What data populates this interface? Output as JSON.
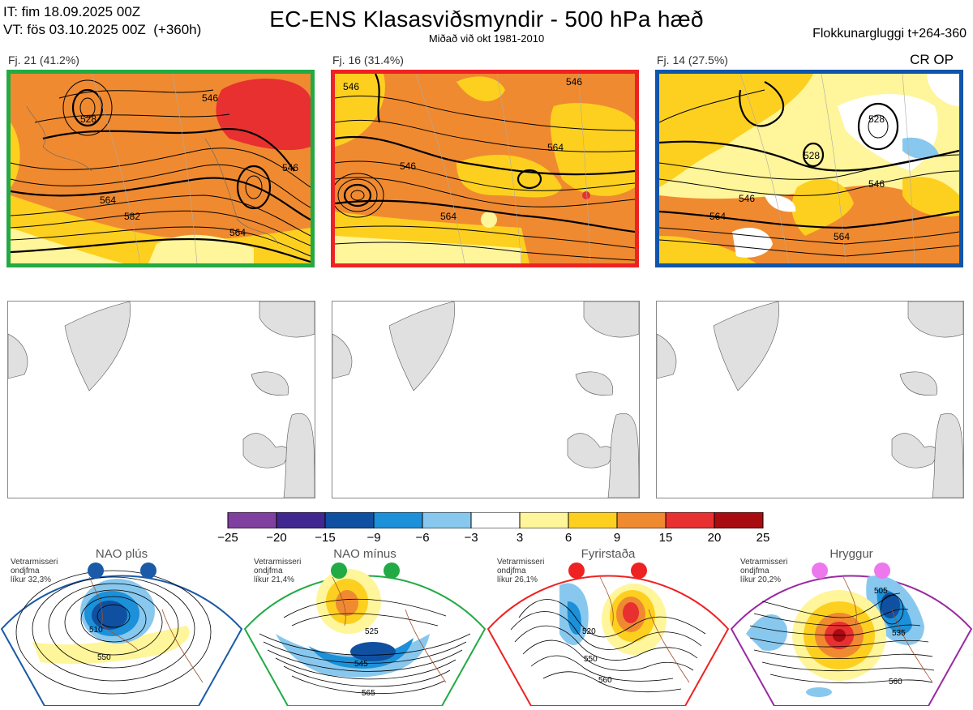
{
  "header": {
    "init_time": "IT: fim 18.09.2025 00Z",
    "valid_time": "VT: fös 03.10.2025 00Z  (+360h)",
    "title": "EC-ENS Klasasviðsmyndir - 500 hPa hæð",
    "subtitle": "Miðað við okt 1981-2010",
    "window": "Flokkunargluggi t+264-360",
    "cr_op": "CR OP"
  },
  "clusters": [
    {
      "label": "Fj. 21 (41.2%)",
      "members": 21,
      "percent": 41.2,
      "border_color": "#22aa44",
      "contour_labels": [
        "546",
        "564",
        "582",
        "564",
        "546",
        "528"
      ]
    },
    {
      "label": "Fj. 16 (31.4%)",
      "members": 16,
      "percent": 31.4,
      "border_color": "#ee2222",
      "contour_labels": [
        "546",
        "564",
        "564",
        "546",
        "546"
      ]
    },
    {
      "label": "Fj. 14 (27.5%)",
      "members": 14,
      "percent": 27.5,
      "border_color": "#1155aa",
      "contour_labels": [
        "528",
        "546",
        "564",
        "564",
        "546",
        "528"
      ]
    }
  ],
  "colorbar": {
    "ticks": [
      "−25",
      "−20",
      "−15",
      "−9",
      "−6",
      "−3",
      "3",
      "6",
      "9",
      "15",
      "20",
      "25"
    ],
    "colors": [
      "#8040a0",
      "#402890",
      "#1050a0",
      "#1c90d8",
      "#88c8ee",
      "#ffffff",
      "#fff59a",
      "#fdd020",
      "#f08a30",
      "#e83030",
      "#a80c10"
    ]
  },
  "regimes": [
    {
      "name": "NAO plús",
      "prob_label": "Vetrarmisseri\nondjfma\nlíkur 32,3%",
      "color": "#1a5aa8",
      "contour_labels": [
        "510",
        "550"
      ]
    },
    {
      "name": "NAO mínus",
      "prob_label": "Vetrarmisseri\nondjfma\nlíkur 21,4%",
      "color": "#22aa44",
      "contour_labels": [
        "525",
        "545",
        "565"
      ]
    },
    {
      "name": "Fyrirstaða",
      "prob_label": "Vetrarmisseri\nondjfma\nlíkur 26,1%",
      "color": "#ee2222",
      "contour_labels": [
        "520",
        "550",
        "560"
      ]
    },
    {
      "name": "Hryggur",
      "prob_label": "Vetrarmisseri\nondjfma\nlíkur 20,2%",
      "color": "#9a2aa0",
      "contour_labels": [
        "505",
        "535",
        "560"
      ]
    }
  ]
}
